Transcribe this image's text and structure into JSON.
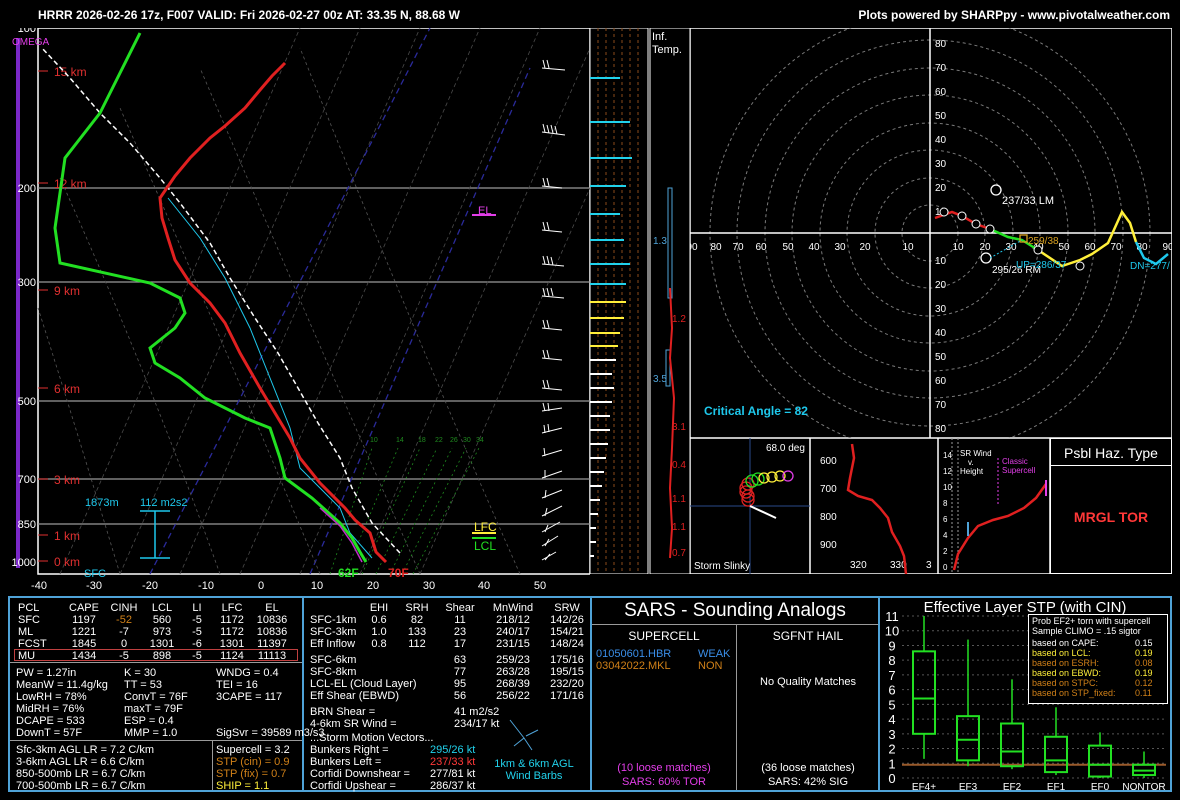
{
  "header": {
    "left": "HRRR 2026-02-26 17z, F007  VALID: Fri 2026-02-27 00z  AT: 33.35 N, 88.68 W",
    "right": "Plots powered by SHARPpy - www.pivotalweather.com"
  },
  "skewt": {
    "omega_label": "OMEGA",
    "pressure_labels": [
      "100",
      "200",
      "300",
      "500",
      "700",
      "850",
      "1000"
    ],
    "height_labels": [
      "15 km",
      "12 km",
      "9 km",
      "6 km",
      "3 km",
      "1 km",
      "0 km"
    ],
    "temp_ticks": [
      "-40",
      "-30",
      "-20",
      "-10",
      "0",
      "10",
      "20",
      "30",
      "40",
      "50"
    ],
    "sfc_label": "SFC",
    "dewpoint_sfc": "62F",
    "temp_sfc": "70F",
    "el_label": "EL",
    "lfc_label": "LFC",
    "lcl_label": "LCL",
    "inflow_height": "1873m",
    "inflow_srh": "112 m2s2",
    "mixing_ratio_labels": [
      "10",
      "14",
      "18",
      "22",
      "26",
      "30",
      "34"
    ]
  },
  "inferred_temp": {
    "title_line1": "Inf.",
    "title_line2": "Temp.",
    "values": [
      "1.3",
      "1.2",
      "3.5",
      "3.1",
      "0.4",
      "1.1",
      "1.1",
      "0.7"
    ]
  },
  "hodograph": {
    "x_labels": [
      "90",
      "80",
      "70",
      "60",
      "50",
      "40",
      "30",
      "20",
      "10",
      "10",
      "20",
      "30",
      "40",
      "50",
      "60",
      "70",
      "80",
      "90"
    ],
    "y_labels_up": [
      "80",
      "70",
      "60",
      "50",
      "40",
      "30",
      "20",
      "10"
    ],
    "y_labels_down": [
      "10",
      "20",
      "30",
      "40",
      "50",
      "60",
      "70",
      "80"
    ],
    "lm_label": "237/33 LM",
    "rm_label": "295/26 RM",
    "up_label": "UP=286/37",
    "dn_label": "DN=277/",
    "mean_label": "259/38",
    "critical_angle": "Critical Angle = 82"
  },
  "storm_slinky": {
    "angle": "68.0 deg",
    "label": "Storm Slinky"
  },
  "theta_panel": {
    "y_labels": [
      "600",
      "700",
      "800",
      "900"
    ],
    "x_labels": [
      "320",
      "330",
      "3"
    ]
  },
  "sr_wind": {
    "title_line1": "SR Wind",
    "title_line2": "v.",
    "title_line3": "Height",
    "classic_line1": "Classic",
    "classic_line2": "Supercell",
    "y_labels": [
      "14",
      "12",
      "10",
      "8",
      "6",
      "4",
      "2",
      "0"
    ]
  },
  "hazard": {
    "title": "Psbl Haz. Type",
    "value": "MRGL TOR"
  },
  "parcels": {
    "headers": [
      "PCL",
      "CAPE",
      "CINH",
      "LCL",
      "LI",
      "LFC",
      "EL"
    ],
    "rows": [
      [
        "SFC",
        "1197",
        "-52",
        "560",
        "-5",
        "1172",
        "10836"
      ],
      [
        "ML",
        "1221",
        "-7",
        "973",
        "-5",
        "1172",
        "10836"
      ],
      [
        "FCST",
        "1845",
        "0",
        "1301",
        "-6",
        "1301",
        "11397"
      ],
      [
        "MU",
        "1434",
        "-5",
        "898",
        "-5",
        "1124",
        "11113"
      ]
    ],
    "indices_left": [
      "PW = 1.27in",
      "MeanW = 11.4g/kg",
      "LowRH = 78%",
      "MidRH = 76%",
      "DCAPE = 533",
      "DownT = 57F"
    ],
    "indices_mid": [
      "K = 30",
      "TT = 53",
      "ConvT = 76F",
      "maxT = 79F",
      "ESP = 0.4",
      "MMP = 1.0"
    ],
    "indices_right": [
      "WNDG = 0.4",
      "TEI = 16",
      "3CAPE = 117"
    ],
    "sigsvr": "SigSvr = 39589 m3/s3",
    "lapse_rates": [
      "Sfc-3km AGL LR = 7.2 C/km",
      "3-6km AGL LR = 6.6 C/km",
      "850-500mb LR = 6.7 C/km",
      "700-500mb LR = 6.7 C/km"
    ],
    "supercell": "Supercell = 3.2",
    "stp_cin": "STP (cin) = 0.9",
    "stp_fix": "STP (fix) = 0.7",
    "ship": "SHIP = 1.1"
  },
  "kinematics": {
    "headers": [
      "EHI",
      "SRH",
      "Shear",
      "MnWind",
      "SRW"
    ],
    "rows1": [
      [
        "SFC-1km",
        "0.6",
        "82",
        "11",
        "218/12",
        "142/26"
      ],
      [
        "SFC-3km",
        "1.0",
        "133",
        "23",
        "240/17",
        "154/21"
      ],
      [
        "Eff Inflow",
        "0.8",
        "112",
        "17",
        "231/15",
        "148/24"
      ]
    ],
    "rows2": [
      [
        "SFC-6km",
        "63",
        "259/23",
        "175/16"
      ],
      [
        "SFC-8km",
        "77",
        "263/28",
        "195/15"
      ],
      [
        "LCL-EL (Cloud Layer)",
        "95",
        "268/39",
        "232/20"
      ],
      [
        "Eff Shear (EBWD)",
        "56",
        "256/22",
        "171/16"
      ]
    ],
    "brn_label": "BRN Shear =",
    "brn_value": "41 m2/s2",
    "srw46_label": "4-6km SR Wind =",
    "srw46_value": "234/17 kt",
    "storm_motion_title": "...Storm Motion Vectors...",
    "motion_labels": [
      "Bunkers Right =",
      "Bunkers Left =",
      "Corfidi Downshear =",
      "Corfidi Upshear ="
    ],
    "motion_values": [
      "295/26 kt",
      "237/33 kt",
      "277/81 kt",
      "286/37 kt"
    ],
    "barb_label1": "1km & 6km AGL",
    "barb_label2": "Wind Barbs"
  },
  "sars": {
    "title": "SARS - Sounding Analogs",
    "supercell_title": "SUPERCELL",
    "hail_title": "SGFNT HAIL",
    "match1": "01050601.HBR",
    "match1_tag": "WEAK",
    "match2": "03042022.MKL",
    "match2_tag": "NON",
    "no_matches": "No Quality Matches",
    "loose1": "(10 loose matches)",
    "sars1": "SARS: 60% TOR",
    "loose2": "(36 loose matches)",
    "sars2": "SARS: 42% SIG"
  },
  "stp": {
    "title": "Effective Layer STP (with CIN)",
    "y_labels": [
      "0",
      "1",
      "2",
      "3",
      "4",
      "5",
      "6",
      "7",
      "8",
      "9",
      "10",
      "11"
    ],
    "categories": [
      "EF4+",
      "EF3",
      "EF2",
      "EF1",
      "EF0",
      "NONTOR"
    ],
    "legend_title1": "Prob EF2+ torn with supercell",
    "legend_title2": "Sample CLIMO = .15 sigtor",
    "legend_rows": [
      [
        "based on CAPE:",
        "0.15"
      ],
      [
        "based on LCL:",
        "0.19"
      ],
      [
        "based on ESRH:",
        "0.08"
      ],
      [
        "based on EBWD:",
        "0.19"
      ],
      [
        "based on STPC:",
        "0.12"
      ],
      [
        "based on STP_fixed:",
        "0.11"
      ]
    ]
  },
  "chart_data": {
    "type": "box",
    "title": "Effective Layer STP (with CIN)",
    "categories": [
      "EF4+",
      "EF3",
      "EF2",
      "EF1",
      "EF0",
      "NONTOR"
    ],
    "ylim": [
      0,
      11
    ],
    "boxes": [
      {
        "low": 1.3,
        "q1": 3.0,
        "median": 5.4,
        "q3": 8.6,
        "high": 11.0
      },
      {
        "low": 0.8,
        "q1": 1.2,
        "median": 2.6,
        "q3": 4.2,
        "high": 9.4
      },
      {
        "low": 0.6,
        "q1": 0.8,
        "median": 1.8,
        "q3": 3.7,
        "high": 6.7
      },
      {
        "low": 0.2,
        "q1": 0.4,
        "median": 1.2,
        "q3": 2.8,
        "high": 4.8
      },
      {
        "low": 0.0,
        "q1": 0.1,
        "median": 0.9,
        "q3": 2.2,
        "high": 3.1
      },
      {
        "low": 0.0,
        "q1": 0.2,
        "median": 0.5,
        "q3": 0.9,
        "high": 1.8
      }
    ],
    "current_value": 0.9
  }
}
